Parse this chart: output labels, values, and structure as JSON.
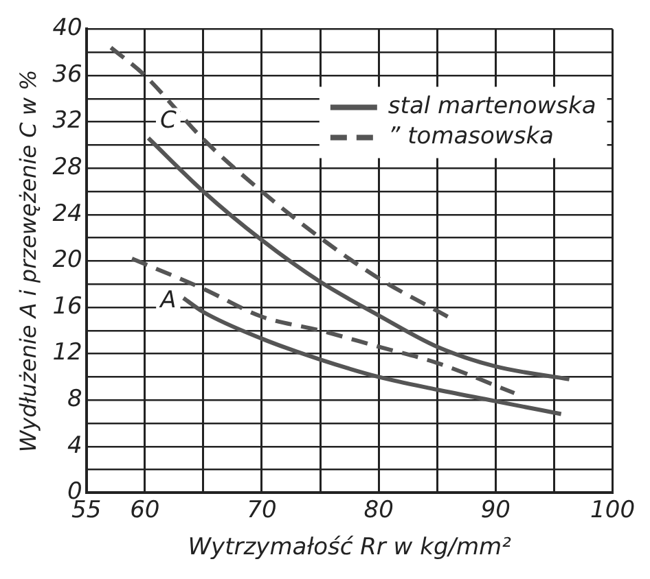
{
  "chart_data": {
    "type": "line",
    "xlabel": "Wytrzymałość Rr w kg/mm²",
    "ylabel": "Wydłużenie A i przewężenie C w %",
    "xlim": [
      55,
      100
    ],
    "xticks": [
      55,
      60,
      {
        "value": 65,
        "label": null
      },
      70,
      {
        "value": 75,
        "label": null
      },
      80,
      {
        "value": 85,
        "label": null
      },
      90,
      {
        "value": 95,
        "label": null
      },
      100
    ],
    "ylim": [
      0,
      40
    ],
    "yticks": [
      0,
      {
        "value": 2,
        "label": null
      },
      4,
      {
        "value": 6,
        "label": null
      },
      8,
      {
        "value": 10,
        "label": null
      },
      12,
      {
        "value": 14,
        "label": null
      },
      16,
      {
        "value": 18,
        "label": null
      },
      20,
      {
        "value": 22,
        "label": null
      },
      24,
      {
        "value": 26,
        "label": null
      },
      28,
      {
        "value": 30,
        "label": null
      },
      32,
      {
        "value": 34,
        "label": null
      },
      36,
      {
        "value": 38,
        "label": null
      },
      40
    ],
    "grid": true,
    "legend": "top right",
    "marker": "none",
    "series": [
      {
        "name": "stal martenowska",
        "color": "#555555",
        "line_style": "solid",
        "x": [
          60.3,
          65,
          70,
          75,
          80,
          85,
          90,
          96.3
        ],
        "values": [
          30.6,
          26,
          21.8,
          18.2,
          15.3,
          12.6,
          10.9,
          9.8
        ]
      },
      {
        "name": "” tomasowska",
        "color": "#555555",
        "line_style": "dashed",
        "x": [
          57.1,
          60,
          65,
          70,
          75,
          80,
          85.9
        ],
        "values": [
          38.4,
          36,
          30.5,
          26,
          22,
          18.5,
          15.2
        ]
      },
      {
        "color": "#555555",
        "line_style": "solid",
        "x": [
          63.3,
          65,
          70,
          75,
          80,
          85,
          90,
          95.6
        ],
        "values": [
          16.8,
          15.6,
          13.3,
          11.5,
          10,
          8.9,
          7.9,
          6.8
        ]
      },
      {
        "color": "#555555",
        "line_style": "dashed",
        "x": [
          58.9,
          65,
          70,
          75,
          80,
          85,
          91.6
        ],
        "values": [
          20.2,
          17.6,
          15.2,
          14,
          12.6,
          11.2,
          8.6
        ]
      }
    ],
    "annotations": [
      {
        "text": "C",
        "x": 62,
        "y": 32
      },
      {
        "text": "A",
        "x": 62,
        "y": 16.5
      }
    ]
  }
}
